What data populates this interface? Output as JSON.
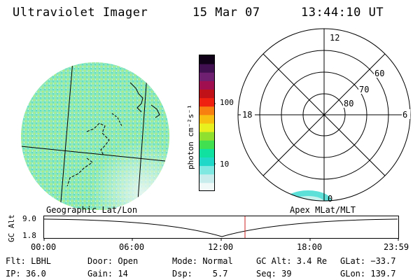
{
  "header": {
    "instrument": "Ultraviolet Imager",
    "date": "15 Mar 07",
    "time": "13:44:10 UT"
  },
  "colorbar": {
    "unit_label": "photon cm⁻²s⁻¹",
    "ticks": [
      "100",
      "10"
    ],
    "colors": [
      "#f0f8f8",
      "#c8ecec",
      "#7fe8e0",
      "#20d8c8",
      "#10e0a0",
      "#40e050",
      "#90e030",
      "#e8f020",
      "#f8c010",
      "#f88010",
      "#f02010",
      "#c01018",
      "#a01050",
      "#702070",
      "#401050",
      "#100018"
    ]
  },
  "left_panel": {
    "caption": "Geographic Lat/Lon",
    "disk_color": "#8ee8b8"
  },
  "right_panel": {
    "caption": "Apex MLat/MLT",
    "mlt_labels": {
      "top": "12",
      "left": "18",
      "right": "6",
      "bottom": "0"
    },
    "lat_labels": [
      "60",
      "70",
      "80"
    ]
  },
  "timeline": {
    "y_axis_label": "GC Alt",
    "y_ticks": [
      "9.0",
      "1.8"
    ],
    "x_ticks": [
      "00:00",
      "06:00",
      "12:00",
      "18:00",
      "23:59"
    ],
    "marker_color": "#cc2020"
  },
  "footer": {
    "filter": "Flt: LBHL",
    "ip": "IP: 36.0",
    "door": "Door: Open",
    "gain": "Gain: 14",
    "mode": "Mode: Normal",
    "dsp": "Dsp:    5.7",
    "gc_alt": "GC Alt: 3.4 Re",
    "seq": "Seq: 39",
    "glat": "GLat: −33.7",
    "glon": "GLon: 139.7"
  }
}
